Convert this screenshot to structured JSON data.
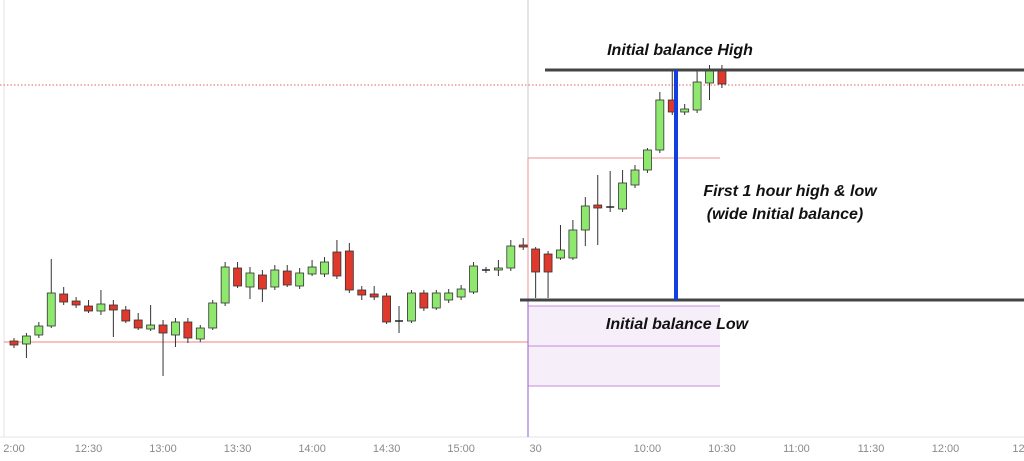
{
  "chart_data": {
    "type": "candlestick",
    "categories": [
      "2:00",
      null,
      null,
      null,
      null,
      null,
      "12:30",
      null,
      null,
      null,
      null,
      null,
      "13:00",
      null,
      null,
      null,
      null,
      null,
      "13:30",
      null,
      null,
      null,
      null,
      null,
      "14:00",
      null,
      null,
      null,
      null,
      null,
      "14:30",
      null,
      null,
      null,
      null,
      null,
      "15:00",
      null,
      null,
      null,
      null,
      null,
      "30",
      null,
      null,
      null,
      null,
      null,
      null,
      null,
      null,
      "10:00",
      null,
      null,
      null,
      null,
      null,
      "10:30",
      null,
      null,
      null,
      null,
      null,
      "11:00",
      null,
      null,
      null,
      null,
      null,
      "11:30",
      null,
      null,
      null,
      null,
      null,
      "12:00",
      null,
      null,
      null,
      null,
      null,
      "12:"
    ],
    "open": [
      120,
      117,
      126,
      135,
      167,
      160,
      155,
      150,
      156,
      151,
      141,
      132,
      136,
      126,
      139,
      122,
      133,
      158,
      193,
      174,
      186,
      174,
      190,
      175,
      187,
      187,
      209,
      210,
      171,
      167,
      165,
      140,
      140,
      168,
      153,
      161,
      164,
      169,
      191,
      191,
      193,
      216,
      212,
      207,
      203,
      203,
      231,
      256,
      254,
      252,
      276,
      291,
      311,
      361,
      349,
      351,
      378,
      392,
      null,
      null,
      null,
      null,
      null,
      null,
      null,
      null,
      null,
      null,
      null,
      null,
      null,
      null,
      null,
      null,
      null,
      null,
      null,
      null,
      null,
      null,
      null,
      null
    ],
    "high": [
      123,
      128,
      139,
      202,
      174,
      164,
      161,
      171,
      161,
      155,
      148,
      156,
      141,
      143,
      143,
      136,
      161,
      199,
      199,
      194,
      191,
      196,
      196,
      193,
      201,
      204,
      221,
      218,
      175,
      175,
      168,
      155,
      171,
      171,
      171,
      172,
      176,
      199,
      194,
      201,
      221,
      223,
      214,
      210,
      236,
      241,
      264,
      286,
      290,
      291,
      296,
      313,
      369,
      391,
      357,
      391,
      396,
      396,
      null,
      null,
      null,
      null,
      null,
      null,
      null,
      null,
      null,
      null,
      null,
      null,
      null,
      null,
      null,
      null,
      null,
      null,
      null,
      null,
      null,
      null,
      null,
      null
    ],
    "low": [
      113,
      103,
      123,
      133,
      156,
      153,
      148,
      146,
      124,
      138,
      131,
      130,
      85,
      114,
      118,
      119,
      131,
      155,
      173,
      162,
      159,
      171,
      174,
      172,
      185,
      184,
      182,
      168,
      161,
      161,
      137,
      128,
      138,
      150,
      151,
      158,
      161,
      167,
      188,
      185,
      190,
      211,
      163,
      163,
      201,
      201,
      215,
      216,
      249,
      249,
      273,
      288,
      308,
      346,
      346,
      348,
      361,
      373,
      null,
      null,
      null,
      null,
      null,
      null,
      null,
      null,
      null,
      null,
      null,
      null,
      null,
      null,
      null,
      null,
      null,
      null,
      null,
      null,
      null,
      null,
      null,
      null
    ],
    "close": [
      116,
      125,
      135,
      168,
      159,
      156,
      150,
      157,
      151,
      140,
      133,
      136,
      128,
      139,
      123,
      133,
      158,
      194,
      175,
      188,
      172,
      191,
      176,
      188,
      194,
      199,
      185,
      171,
      166,
      164,
      139,
      140,
      168,
      153,
      168,
      168,
      172,
      195,
      191,
      193,
      215,
      214,
      189,
      189,
      211,
      231,
      255,
      253,
      254,
      278,
      291,
      311,
      361,
      349,
      352,
      379,
      391,
      377,
      null,
      null,
      null,
      null,
      null,
      null,
      null,
      null,
      null,
      null,
      null,
      null,
      null,
      null,
      null,
      null,
      null,
      null,
      null,
      null,
      null,
      null,
      null,
      null
    ],
    "up_color": "#8ee86e",
    "down_color": "#e0392b",
    "ylim": [
      24,
      461
    ],
    "annotations": [
      "Initial balance High",
      "First 1 hour high & low",
      "(wide Initial balance)",
      "Initial balance Low"
    ]
  }
}
